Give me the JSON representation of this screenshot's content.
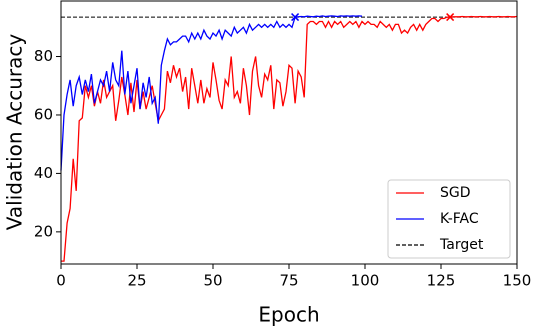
{
  "chart_data": {
    "type": "line",
    "x_label": "Epoch",
    "y_label": "Validation Accuracy",
    "xlim": [
      0,
      150
    ],
    "ylim": [
      9,
      99
    ],
    "xticks": [
      0,
      25,
      50,
      75,
      100,
      125,
      150
    ],
    "yticks": [
      20,
      40,
      60,
      80
    ],
    "legend": "lower right",
    "x": [
      0,
      1,
      2,
      3,
      4,
      5,
      6,
      7,
      8,
      9,
      10,
      11,
      12,
      13,
      14,
      15,
      16,
      17,
      18,
      19,
      20,
      21,
      22,
      23,
      24,
      25,
      26,
      27,
      28,
      29,
      30,
      31,
      32,
      33,
      34,
      35,
      36,
      37,
      38,
      39,
      40,
      41,
      42,
      43,
      44,
      45,
      46,
      47,
      48,
      49,
      50,
      51,
      52,
      53,
      54,
      55,
      56,
      57,
      58,
      59,
      60,
      61,
      62,
      63,
      64,
      65,
      66,
      67,
      68,
      69,
      70,
      71,
      72,
      73,
      74,
      75,
      76,
      77,
      78,
      79,
      80,
      81,
      82,
      83,
      84,
      85,
      86,
      87,
      88,
      89,
      90,
      91,
      92,
      93,
      94,
      95,
      96,
      97,
      98,
      99,
      100,
      101,
      102,
      103,
      104,
      105,
      106,
      107,
      108,
      109,
      110,
      111,
      112,
      113,
      114,
      115,
      116,
      117,
      118,
      119,
      120,
      121,
      122,
      123,
      124,
      125,
      126,
      127,
      128,
      129,
      130,
      131,
      132,
      133,
      134,
      135,
      136,
      137,
      138,
      139,
      140,
      141,
      142,
      143,
      144,
      145,
      146,
      147,
      148,
      149,
      150
    ],
    "series": [
      {
        "name": "SGD",
        "color": "#ff0000",
        "values": [
          10,
          10,
          23,
          28,
          45,
          34,
          58,
          59,
          70,
          66,
          70,
          63,
          68,
          64,
          72,
          66,
          68,
          70,
          58,
          65,
          73,
          67,
          60,
          71,
          61,
          72,
          62,
          68,
          62,
          66,
          70,
          64,
          58,
          60,
          62,
          75,
          71,
          77,
          73,
          76,
          68,
          73,
          62,
          76,
          70,
          64,
          72,
          64,
          69,
          66,
          78,
          72,
          65,
          62,
          72,
          70,
          80,
          66,
          68,
          64,
          76,
          70,
          60,
          75,
          80,
          70,
          66,
          74,
          72,
          77,
          62,
          72,
          71,
          63,
          68,
          77,
          76,
          64,
          75,
          73,
          66,
          91,
          92,
          92,
          91,
          92,
          92,
          90,
          92,
          90,
          92,
          91,
          92,
          90,
          91,
          92,
          91,
          92,
          90,
          92,
          91,
          92,
          91,
          91,
          90,
          92,
          91,
          90,
          91,
          89,
          91,
          91,
          88,
          89,
          88,
          90,
          91,
          89,
          91,
          89,
          91,
          92,
          93,
          93,
          92,
          93,
          93,
          93.5,
          93.5,
          93.6,
          93.6,
          93.6,
          93.7,
          93.6,
          93.6,
          93.7,
          93.6,
          93.6,
          93.7,
          93.6,
          93.6,
          93.7,
          93.6,
          93.6,
          93.7,
          93.6,
          93.6,
          93.7,
          93.6,
          93.6,
          93.7
        ]
      },
      {
        "name": "K-FAC",
        "color": "#0000ff",
        "values": [
          41,
          60,
          67,
          72,
          63,
          70,
          73,
          67,
          72,
          68,
          74,
          64,
          68,
          72,
          70,
          75,
          68,
          78,
          72,
          70,
          82,
          67,
          75,
          64,
          70,
          76,
          62,
          71,
          66,
          73,
          64,
          66,
          57,
          77,
          82,
          86,
          84,
          85,
          85,
          86,
          87,
          87,
          85,
          88,
          86,
          88,
          86,
          89,
          87,
          86,
          88,
          87,
          89,
          86,
          89,
          88,
          87,
          90,
          88,
          89,
          90,
          88,
          91,
          89,
          90,
          91,
          90,
          91,
          90,
          91,
          90,
          92,
          90,
          91,
          90,
          91,
          90,
          93.5,
          93.6,
          93.7,
          93.6,
          93.8,
          93.7,
          93.6,
          93.8,
          93.7,
          93.9,
          93.7,
          93.8,
          93.9,
          93.8,
          93.7,
          93.9,
          93.8,
          93.9,
          93.8,
          93.9,
          93.8,
          93.9,
          93.8,
          null,
          null,
          null,
          null,
          null,
          null,
          null,
          null,
          null,
          null,
          null,
          null,
          null,
          null,
          null,
          null,
          null,
          null,
          null,
          null,
          null,
          null,
          null,
          null,
          null,
          null,
          null,
          null,
          null,
          null,
          null,
          null,
          null,
          null,
          null,
          null,
          null,
          null,
          null,
          null,
          null,
          null,
          null,
          null,
          null,
          null,
          null,
          null,
          null,
          null,
          null
        ]
      }
    ],
    "target": {
      "name": "Target",
      "color": "#000000",
      "value": 93.5
    },
    "markers": [
      {
        "x": 77,
        "y": 93.5,
        "color": "#0000ff"
      },
      {
        "x": 128,
        "y": 93.5,
        "color": "#ff0000"
      }
    ]
  }
}
